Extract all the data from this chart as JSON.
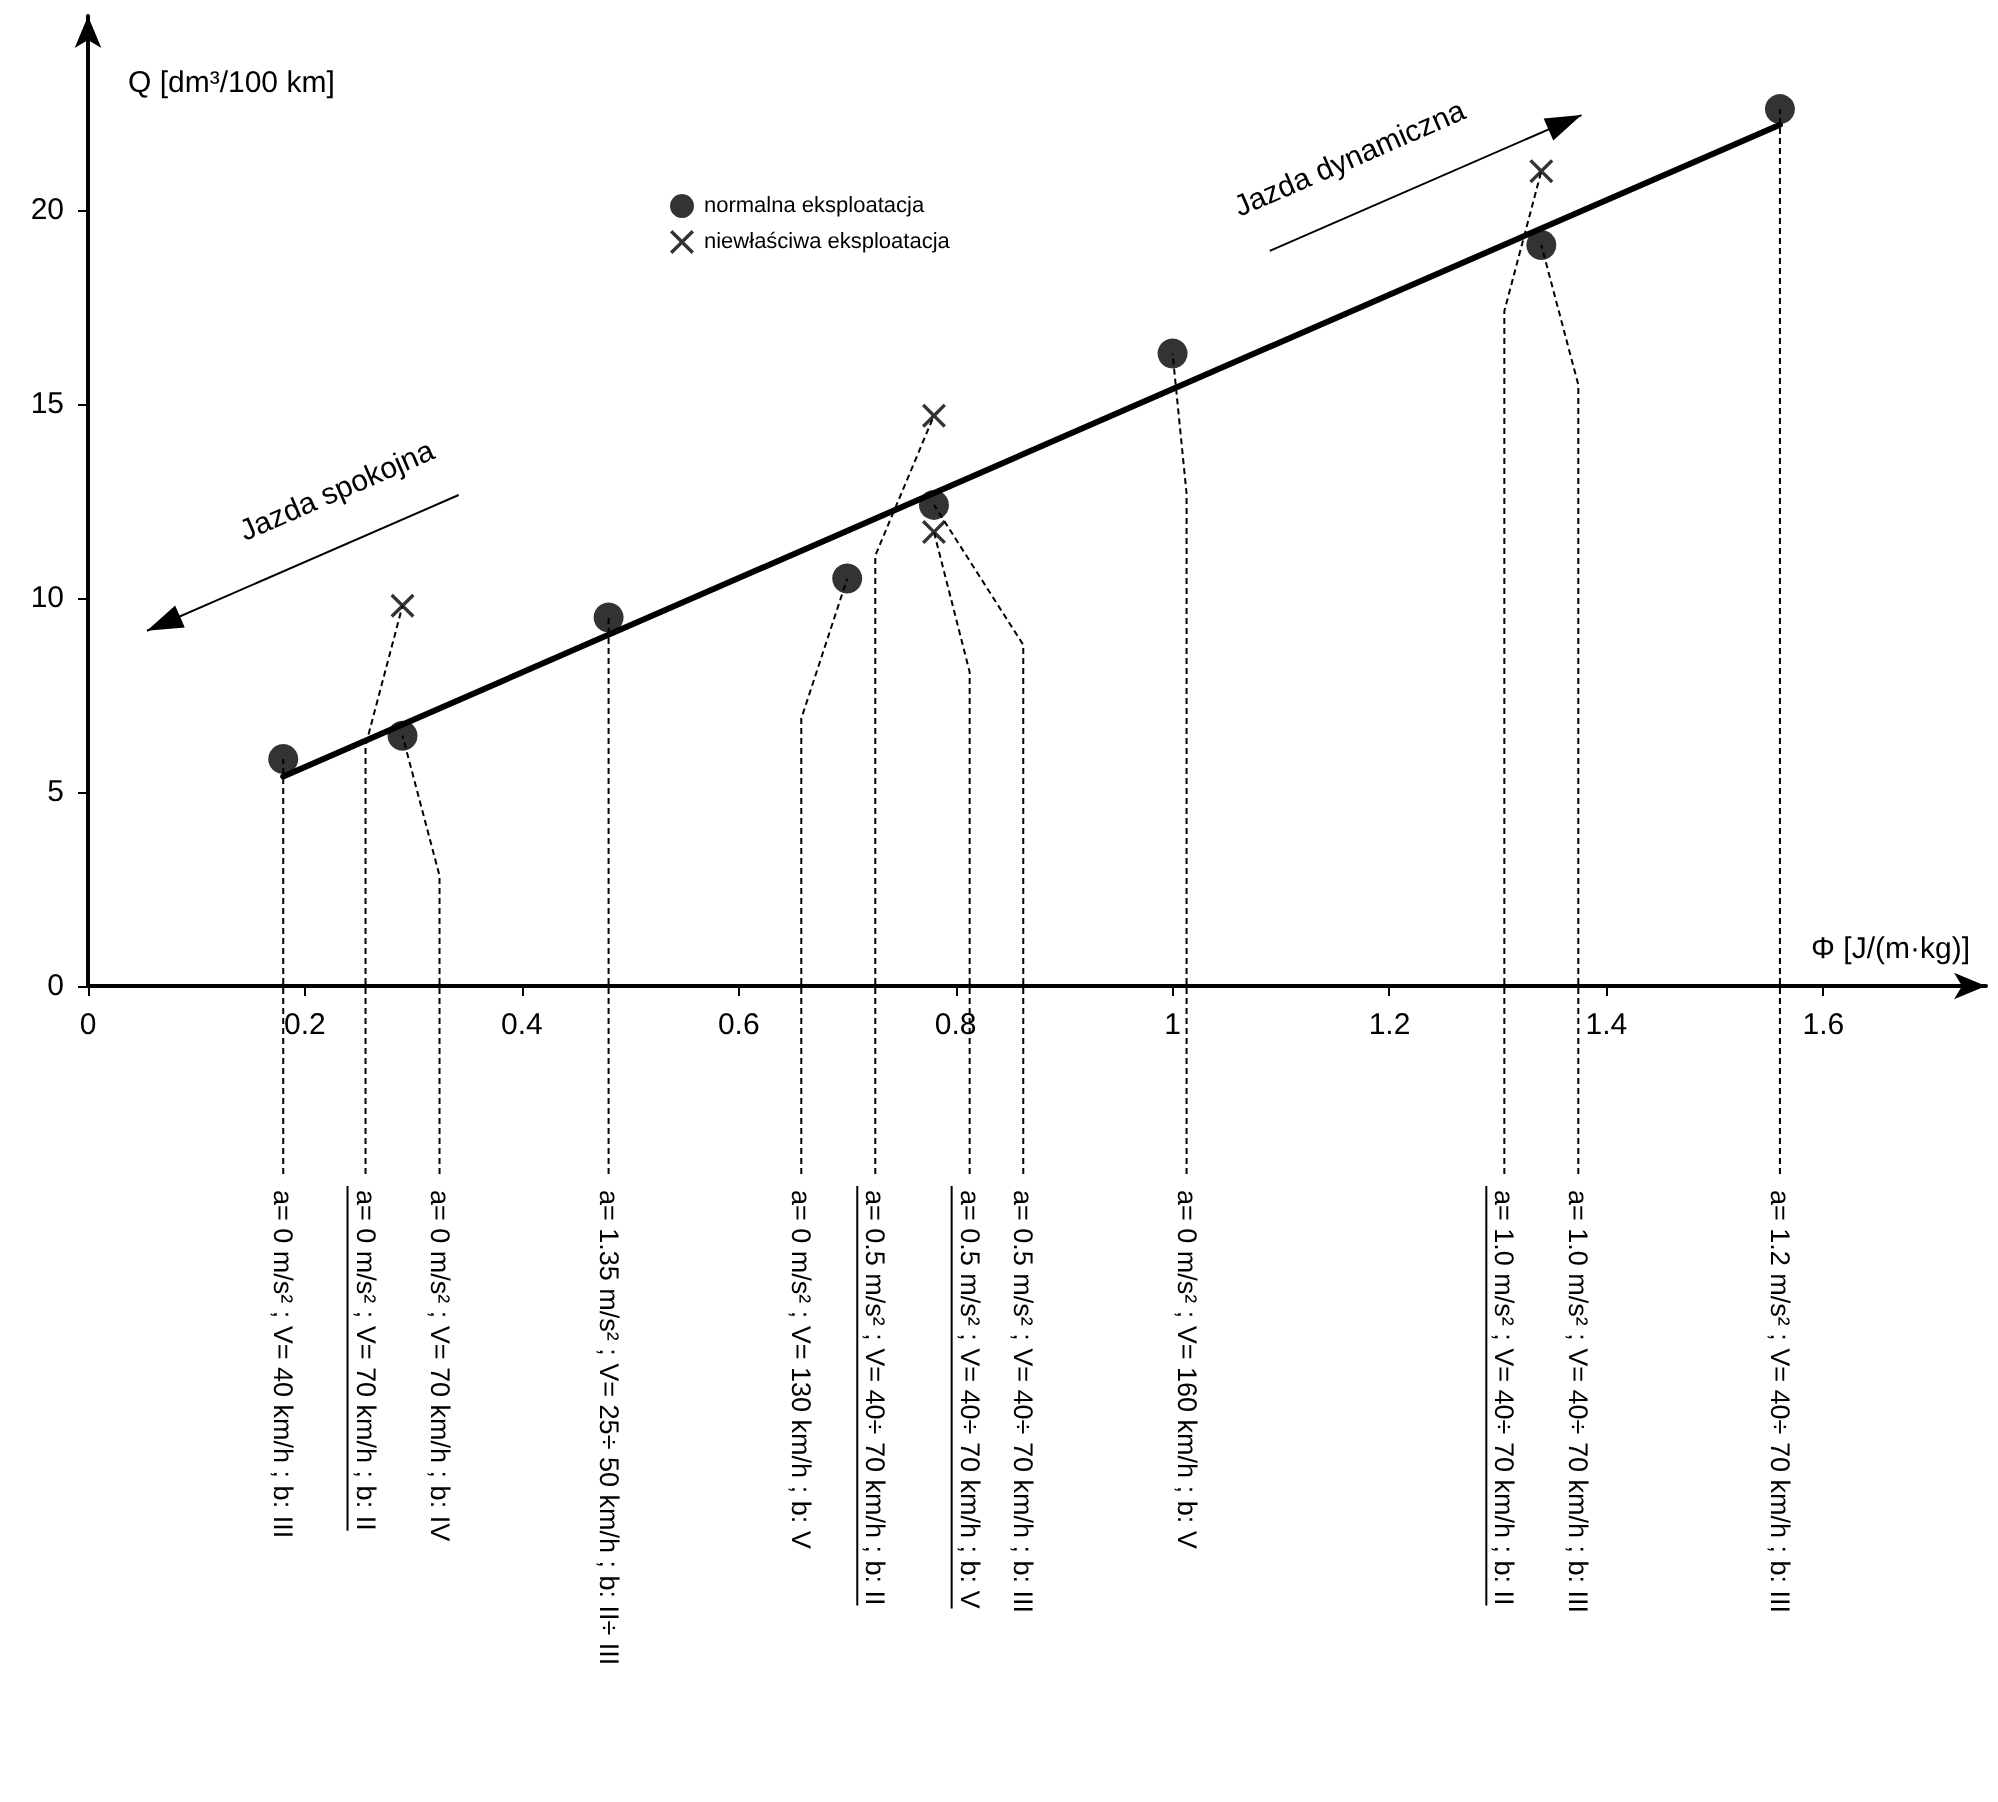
{
  "chart_data": {
    "type": "scatter",
    "xlabel": "Φ   [J/(m·kg)]",
    "ylabel": "Q  [dm³/100 km]",
    "xlim": [
      0,
      1.75
    ],
    "ylim": [
      0,
      25
    ],
    "xticks": [
      0,
      0.2,
      0.4,
      0.6,
      0.8,
      1,
      1.2,
      1.4,
      1.6
    ],
    "yticks": [
      0,
      5,
      10,
      15,
      20
    ],
    "grid": false,
    "legend": "top",
    "marker": "circle",
    "series": [
      {
        "name": "normalna eksploatacja",
        "color": "#000000",
        "x": [
          0.18,
          0.29,
          0.48,
          0.7,
          0.78,
          1.0,
          1.34,
          1.56
        ],
        "values": [
          5.85,
          6.45,
          9.5,
          10.5,
          12.4,
          16.3,
          19.1,
          22.6
        ]
      },
      {
        "name": "niewłaściwa eksploatacja",
        "color": "#000000",
        "marker": "cross",
        "x": [
          0.29,
          0.78,
          0.78,
          1.34
        ],
        "values": [
          9.8,
          14.7,
          11.7,
          21.0
        ]
      },
      {
        "type": "line",
        "color": "#000000",
        "marker": "none",
        "x": [
          0.18,
          1.56
        ],
        "values": [
          5.4,
          22.2
        ]
      }
    ],
    "annotations": [
      {
        "text": "a= 0 m/s² ;  V= 40 km/h ;  b: III",
        "x": 0.18,
        "y": 5.85
      },
      {
        "text": "a= 0 m/s² ;  V= 70 km/h ;  b: II",
        "x": 0.29,
        "y": 9.8
      },
      {
        "text": "a= 0 m/s² ;  V= 70 km/h ;  b: IV",
        "x": 0.29,
        "y": 6.45
      },
      {
        "text": "a= 1.35 m/s² ;  V= 25÷ 50 km/h ;  b: II÷ III",
        "x": 0.48,
        "y": 9.5
      },
      {
        "text": "a= 0 m/s² ;  V= 130 km/h ;  b: V",
        "x": 0.7,
        "y": 10.5
      },
      {
        "text": "a= 0.5 m/s² ;  V= 40÷ 70 km/h ;  b: II",
        "x": 0.78,
        "y": 14.7
      },
      {
        "text": "a= 0.5 m/s² ;  V= 40÷ 70 km/h ;  b: V",
        "x": 0.78,
        "y": 11.7
      },
      {
        "text": "a= 0.5 m/s² ;  V= 40÷ 70 km/h ;  b: III",
        "x": 0.78,
        "y": 12.4
      },
      {
        "text": "a= 0 m/s² ;  V= 160 km/h ;  b: V",
        "x": 1.0,
        "y": 16.3
      },
      {
        "text": "a= 1.0 m/s² ;  V= 40÷ 70 km/h ;  b: II",
        "x": 1.34,
        "y": 21.0
      },
      {
        "text": "a= 1.0 m/s² ;  V= 40÷ 70 km/h ;  b: III",
        "x": 1.34,
        "y": 19.1
      },
      {
        "text": "a= 1.2 m/s² ;  V= 40÷ 70 km/h ;  b: III",
        "x": 1.56,
        "y": 22.6
      },
      "Jazda spokojna",
      "Jazda dynamiczna"
    ]
  }
}
